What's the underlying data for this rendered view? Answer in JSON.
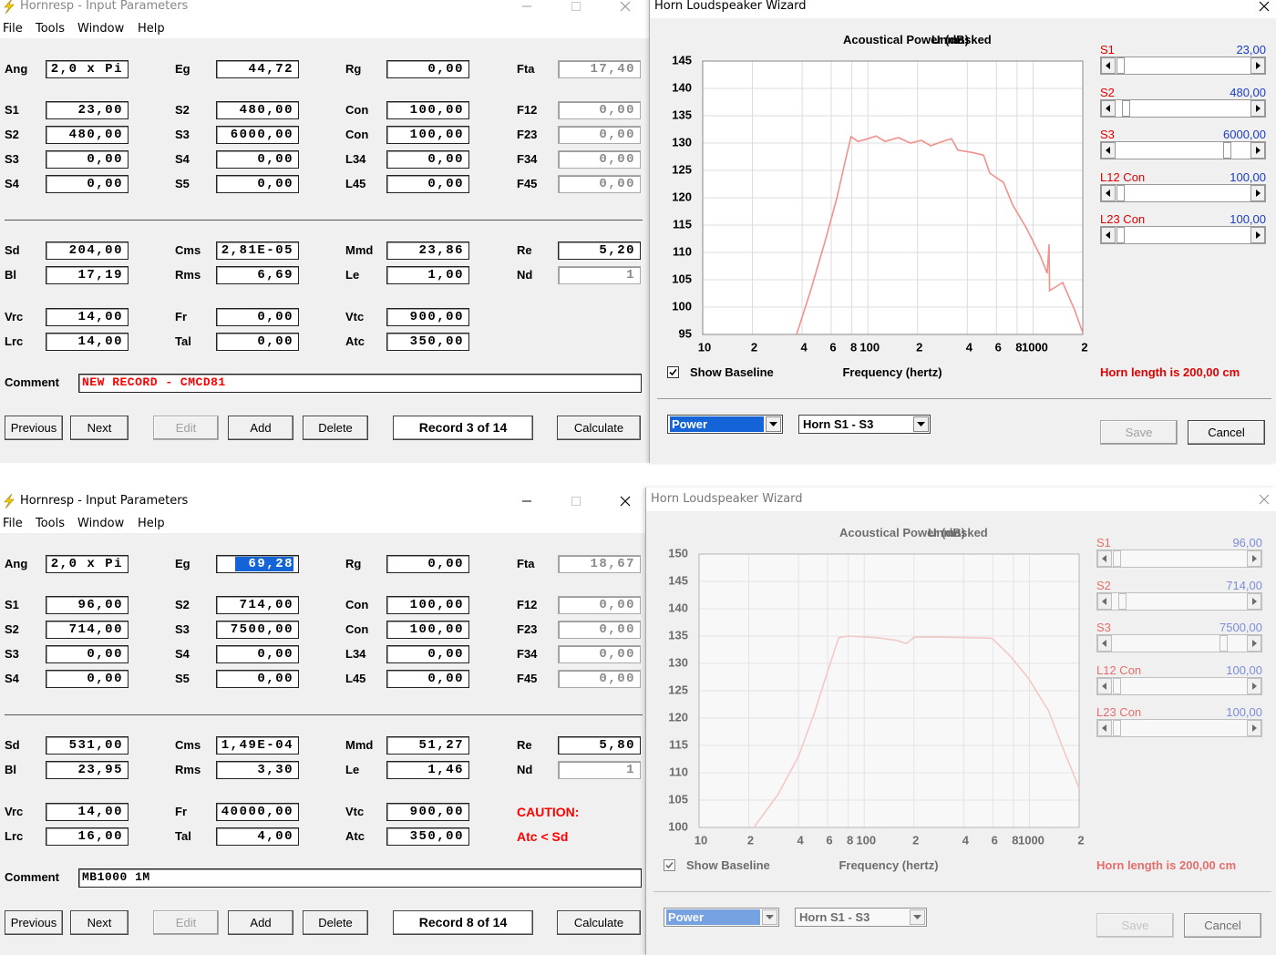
{
  "panels": [
    {
      "input": {
        "title": "Hornresp - Input Parameters",
        "menu": [
          "File",
          "Tools",
          "Window",
          "Help"
        ],
        "rows": [
          [
            {
              "label": "Ang",
              "value": "2,0 x Pi"
            },
            {
              "label": "Eg",
              "value": "44,72"
            },
            {
              "label": "Rg",
              "value": "0,00"
            },
            {
              "label": "Fta",
              "value": "17,40",
              "disabled": true
            }
          ],
          [
            {
              "label": "S1",
              "value": "23,00"
            },
            {
              "label": "S2",
              "value": "480,00"
            },
            {
              "label": "Con",
              "value": "100,00"
            },
            {
              "label": "F12",
              "value": "0,00",
              "disabled": true
            }
          ],
          [
            {
              "label": "S2",
              "value": "480,00"
            },
            {
              "label": "S3",
              "value": "6000,00"
            },
            {
              "label": "Con",
              "value": "100,00"
            },
            {
              "label": "F23",
              "value": "0,00",
              "disabled": true
            }
          ],
          [
            {
              "label": "S3",
              "value": "0,00"
            },
            {
              "label": "S4",
              "value": "0,00"
            },
            {
              "label": "L34",
              "value": "0,00"
            },
            {
              "label": "F34",
              "value": "0,00",
              "disabled": true
            }
          ],
          [
            {
              "label": "S4",
              "value": "0,00"
            },
            {
              "label": "S5",
              "value": "0,00"
            },
            {
              "label": "L45",
              "value": "0,00"
            },
            {
              "label": "F45",
              "value": "0,00",
              "disabled": true
            }
          ],
          [
            {
              "label": "Sd",
              "value": "204,00"
            },
            {
              "label": "Cms",
              "value": "2,81E-05"
            },
            {
              "label": "Mmd",
              "value": "23,86"
            },
            {
              "label": "Re",
              "value": "5,20"
            }
          ],
          [
            {
              "label": "Bl",
              "value": "17,19"
            },
            {
              "label": "Rms",
              "value": "6,69"
            },
            {
              "label": "Le",
              "value": "1,00"
            },
            {
              "label": "Nd",
              "value": "1",
              "disabled": true
            }
          ],
          [
            {
              "label": "Vrc",
              "value": "14,00"
            },
            {
              "label": "Fr",
              "value": "0,00"
            },
            {
              "label": "Vtc",
              "value": "900,00"
            }
          ],
          [
            {
              "label": "Lrc",
              "value": "14,00"
            },
            {
              "label": "Tal",
              "value": "0,00"
            },
            {
              "label": "Atc",
              "value": "350,00"
            }
          ]
        ],
        "comment": {
          "label": "Comment",
          "value": "NEW RECORD - CMCD81",
          "color": "#ff0000"
        },
        "buttons": [
          "Previous",
          "Next",
          "Edit",
          "Add",
          "Delete",
          "Record 3 of 14",
          "Calculate"
        ]
      },
      "wizard": {
        "title": "Horn Loudspeaker Wizard",
        "chart_title": "Acoustical Power (dB)",
        "chart_mode": "Unmasked",
        "chart": {
          "type": "line",
          "color": "#f2918b",
          "xscale": "log",
          "grid": true,
          "x": [
            37,
            45,
            55,
            65,
            72,
            79,
            87,
            98,
            112,
            127,
            153,
            181,
            211,
            240,
            283,
            321,
            351,
            425,
            501,
            547,
            662,
            752,
            910,
            1101,
            1219,
            1250,
            1260,
            1513,
            1783,
            2000
          ],
          "values": [
            95,
            103,
            112,
            120,
            126,
            131.2,
            130.3,
            130.7,
            131.3,
            130.3,
            131,
            130,
            130.5,
            129.5,
            130.3,
            130.8,
            128.7,
            128.3,
            127.8,
            124.5,
            122.8,
            118.7,
            114.5,
            109.5,
            106.2,
            111.5,
            103,
            104.5,
            99.5,
            95.3
          ],
          "xlim": [
            10,
            2000
          ],
          "xticks": [
            10,
            {
              "value": 20,
              "label": "2"
            },
            {
              "value": 40,
              "label": "4"
            },
            {
              "value": 60,
              "label": "6"
            },
            {
              "value": 80,
              "label": "8"
            },
            100,
            {
              "value": 200,
              "label": "2"
            },
            {
              "value": 400,
              "label": "4"
            },
            {
              "value": 600,
              "label": "6"
            },
            {
              "value": 800,
              "label": "8"
            },
            1000,
            {
              "value": 2000,
              "label": "2"
            }
          ],
          "ylim": [
            95,
            145
          ],
          "yticks": [
            95,
            100,
            105,
            110,
            115,
            120,
            125,
            130,
            135,
            140,
            145
          ]
        },
        "x_label": "Frequency (hertz)",
        "sliders": [
          {
            "label": "S1",
            "value": "23,00"
          },
          {
            "label": "S2",
            "value": "480,00"
          },
          {
            "label": "S3",
            "value": "6000,00"
          },
          {
            "label": "L12 Con",
            "value": "100,00"
          },
          {
            "label": "L23 Con",
            "value": "100,00"
          }
        ],
        "show_baseline": "Show Baseline",
        "horn_length": "Horn length is 200,00 cm",
        "dropdowns": [
          "Power",
          "Horn S1 - S3"
        ],
        "buttons": [
          "Save",
          "Cancel"
        ]
      }
    },
    {
      "input": {
        "title": "Hornresp - Input Parameters",
        "menu": [
          "File",
          "Tools",
          "Window",
          "Help"
        ],
        "rows": [
          [
            {
              "label": "Ang",
              "value": "2,0 x Pi"
            },
            {
              "label": "Eg",
              "value": "69,28",
              "highlight": true
            },
            {
              "label": "Rg",
              "value": "0,00"
            },
            {
              "label": "Fta",
              "value": "18,67",
              "disabled": true
            }
          ],
          [
            {
              "label": "S1",
              "value": "96,00"
            },
            {
              "label": "S2",
              "value": "714,00"
            },
            {
              "label": "Con",
              "value": "100,00"
            },
            {
              "label": "F12",
              "value": "0,00",
              "disabled": true
            }
          ],
          [
            {
              "label": "S2",
              "value": "714,00"
            },
            {
              "label": "S3",
              "value": "7500,00"
            },
            {
              "label": "Con",
              "value": "100,00"
            },
            {
              "label": "F23",
              "value": "0,00",
              "disabled": true
            }
          ],
          [
            {
              "label": "S3",
              "value": "0,00"
            },
            {
              "label": "S4",
              "value": "0,00"
            },
            {
              "label": "L34",
              "value": "0,00"
            },
            {
              "label": "F34",
              "value": "0,00",
              "disabled": true
            }
          ],
          [
            {
              "label": "S4",
              "value": "0,00"
            },
            {
              "label": "S5",
              "value": "0,00"
            },
            {
              "label": "L45",
              "value": "0,00"
            },
            {
              "label": "F45",
              "value": "0,00",
              "disabled": true
            }
          ],
          [
            {
              "label": "Sd",
              "value": "531,00"
            },
            {
              "label": "Cms",
              "value": "1,49E-04"
            },
            {
              "label": "Mmd",
              "value": "51,27"
            },
            {
              "label": "Re",
              "value": "5,80"
            }
          ],
          [
            {
              "label": "Bl",
              "value": "23,95"
            },
            {
              "label": "Rms",
              "value": "3,30"
            },
            {
              "label": "Le",
              "value": "1,46"
            },
            {
              "label": "Nd",
              "value": "1",
              "disabled": true
            }
          ],
          [
            {
              "label": "Vrc",
              "value": "14,00"
            },
            {
              "label": "Fr",
              "value": "40000,00"
            },
            {
              "label": "Vtc",
              "value": "900,00"
            },
            {
              "note": "CAUTION:",
              "color": "#ff0000"
            }
          ],
          [
            {
              "label": "Lrc",
              "value": "16,00"
            },
            {
              "label": "Tal",
              "value": "4,00"
            },
            {
              "label": "Atc",
              "value": "350,00"
            },
            {
              "note": "Atc < Sd",
              "color": "#ff0000"
            }
          ]
        ],
        "comment": {
          "label": "Comment",
          "value": "MB1000 1M",
          "color": "#000000"
        },
        "buttons": [
          "Previous",
          "Next",
          "Edit",
          "Add",
          "Delete",
          "Record 8 of 14",
          "Calculate"
        ]
      },
      "wizard": {
        "title": "Horn Loudspeaker Wizard",
        "chart_title": "Acoustical Power (dB)",
        "chart_mode": "Unmasked",
        "chart": {
          "type": "line",
          "color": "#f5aaa5",
          "xscale": "log",
          "grid": true,
          "x": [
            21.5,
            30,
            40,
            50,
            60,
            70,
            80,
            120,
            158,
            180,
            201,
            300,
            450,
            594,
            767,
            991,
            1309,
            1585,
            2000
          ],
          "values": [
            100,
            106,
            113,
            121,
            128.5,
            134.7,
            135,
            134.7,
            134.2,
            133.6,
            134.8,
            134.8,
            134.7,
            134.6,
            131.3,
            127.2,
            121.3,
            114.7,
            107.2
          ],
          "xlim": [
            10,
            2000
          ],
          "xticks": [
            10,
            {
              "value": 20,
              "label": "2"
            },
            {
              "value": 40,
              "label": "4"
            },
            {
              "value": 60,
              "label": "6"
            },
            {
              "value": 80,
              "label": "8"
            },
            100,
            {
              "value": 200,
              "label": "2"
            },
            {
              "value": 400,
              "label": "4"
            },
            {
              "value": 600,
              "label": "6"
            },
            {
              "value": 800,
              "label": "8"
            },
            1000,
            {
              "value": 2000,
              "label": "2"
            }
          ],
          "ylim": [
            100,
            150
          ],
          "yticks": [
            100,
            105,
            110,
            115,
            120,
            125,
            130,
            135,
            140,
            145,
            150
          ]
        },
        "x_label": "Frequency (hertz)",
        "sliders": [
          {
            "label": "S1",
            "value": "96,00"
          },
          {
            "label": "S2",
            "value": "714,00"
          },
          {
            "label": "S3",
            "value": "7500,00"
          },
          {
            "label": "L12 Con",
            "value": "100,00"
          },
          {
            "label": "L23 Con",
            "value": "100,00"
          }
        ],
        "show_baseline": "Show Baseline",
        "horn_length": "Horn length is 200,00 cm",
        "dropdowns": [
          "Power",
          "Horn S1 - S3"
        ],
        "buttons": [
          "Save",
          "Cancel"
        ]
      }
    }
  ]
}
